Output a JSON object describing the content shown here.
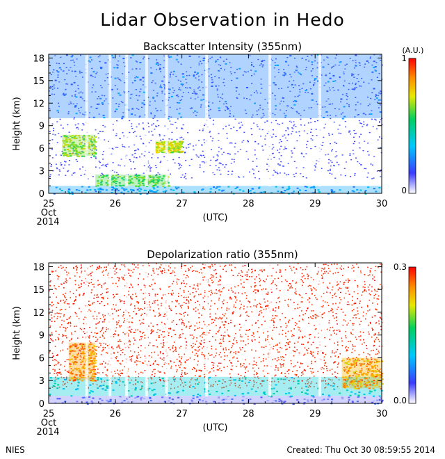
{
  "title": "Lidar Observation in Hedo",
  "footer": {
    "left": "NIES",
    "right": "Created: Thu Oct 30 08:59:55 2014"
  },
  "colors": {
    "background": "#ffffff",
    "low": "#1c2bd9",
    "mid": "#00c06a",
    "high": "#ff1a00"
  },
  "chart_data": [
    {
      "type": "heatmap",
      "title": "Backscatter Intensity (355nm)",
      "xlabel": "(UTC)",
      "ylabel": "Height (km)",
      "x_ticks": [
        "25",
        "26",
        "27",
        "28",
        "29",
        "30"
      ],
      "x_subticks": [
        "Oct",
        "2014"
      ],
      "y_ticks": [
        "0",
        "3",
        "6",
        "9",
        "12",
        "15",
        "18"
      ],
      "xlim": [
        25,
        30
      ],
      "ylim": [
        0,
        18.5
      ],
      "colorbar": {
        "label": "(A.U.)",
        "min_label": "0",
        "max_label": "1",
        "range": [
          0,
          1
        ]
      },
      "features": [
        {
          "x": [
            25.0,
            30.0
          ],
          "y": [
            0.0,
            1.0
          ],
          "value": 0.3
        },
        {
          "x": [
            25.2,
            25.7
          ],
          "y": [
            5.0,
            7.8
          ],
          "value": 0.65
        },
        {
          "x": [
            26.6,
            27.0
          ],
          "y": [
            5.5,
            7.0
          ],
          "value": 0.7
        },
        {
          "x": [
            25.7,
            26.8
          ],
          "y": [
            1.0,
            2.5
          ],
          "value": 0.6
        },
        {
          "x": [
            25.0,
            30.0
          ],
          "y": [
            10.0,
            18.5
          ],
          "value": 0.25
        }
      ]
    },
    {
      "type": "heatmap",
      "title": "Depolarization ratio (355nm)",
      "xlabel": "(UTC)",
      "ylabel": "Height (km)",
      "x_ticks": [
        "25",
        "26",
        "27",
        "28",
        "29",
        "30"
      ],
      "x_subticks": [
        "Oct",
        "2014"
      ],
      "y_ticks": [
        "0",
        "3",
        "6",
        "9",
        "12",
        "15",
        "18"
      ],
      "xlim": [
        25,
        30
      ],
      "ylim": [
        0,
        18.5
      ],
      "colorbar": {
        "label": "",
        "min_label": "0.0",
        "max_label": "0.3",
        "range": [
          0,
          0.3
        ]
      },
      "features": [
        {
          "x": [
            25.0,
            30.0
          ],
          "y": [
            0.0,
            1.0
          ],
          "value": 0.03
        },
        {
          "x": [
            25.0,
            30.0
          ],
          "y": [
            1.0,
            3.5
          ],
          "value": 0.12
        },
        {
          "x": [
            25.3,
            25.7
          ],
          "y": [
            3.0,
            8.0
          ],
          "value": 0.25
        },
        {
          "x": [
            29.4,
            30.0
          ],
          "y": [
            2.0,
            6.0
          ],
          "value": 0.24
        },
        {
          "x": [
            25.0,
            30.0
          ],
          "y": [
            3.0,
            18.5
          ],
          "value": 0.3
        }
      ]
    }
  ]
}
